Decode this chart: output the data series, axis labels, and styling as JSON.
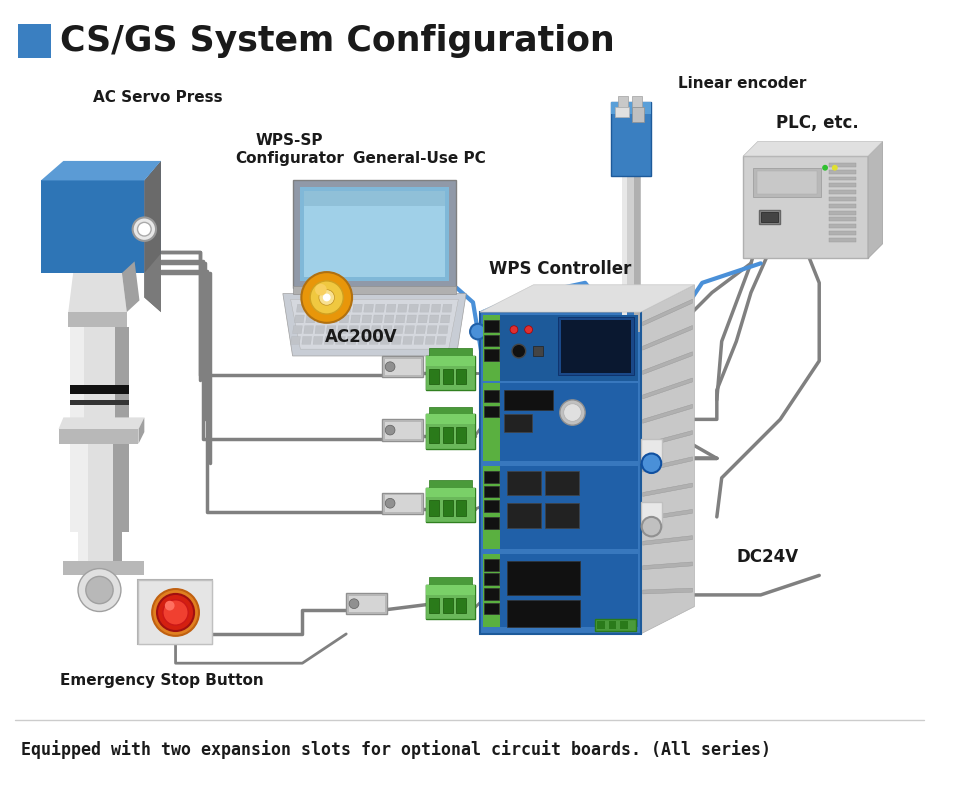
{
  "title": "CS/GS System Configuration",
  "title_color": "#1a1a1a",
  "title_blue_rect": "#3a7fc1",
  "bg_color": "#ffffff",
  "footer_text": "Equipped with two expansion slots for optional circuit boards. (All series)",
  "labels": {
    "ac_servo_press": "AC Servo Press",
    "wps_sp": "WPS-SP\nConfigurator",
    "general_pc": "General-Use PC",
    "linear_encoder": "Linear encoder",
    "plc": "PLC, etc.",
    "wps_controller": "WPS Controller",
    "ac200v": "AC200V",
    "dc24v": "DC24V",
    "emergency_stop": "Emergency Stop Button"
  },
  "colors": {
    "servo_blue_top": "#5b9bd5",
    "servo_blue_side": "#2e75b6",
    "servo_gray_body": "#d0d0d0",
    "servo_gray_dark": "#a0a0a0",
    "servo_gray_med": "#b8b8b8",
    "servo_gray_light": "#e0e0e0",
    "controller_blue": "#3878be",
    "controller_blue_dark": "#1d5a9a",
    "controller_gray": "#b0b0b0",
    "controller_gray_dark": "#909090",
    "heatsink_light": "#d0d0d0",
    "heatsink_dark": "#a0a0a0",
    "connector_green": "#4a9a3a",
    "connector_green_dark": "#2a7a1a",
    "connector_green_light": "#6ab85a",
    "wire_gray": "#808080",
    "wire_dark": "#606060",
    "wire_blue": "#4a90d8",
    "cd_orange": "#e8960a",
    "cd_gold": "#f0c840",
    "emergency_red": "#d42010",
    "emergency_orange": "#e08020",
    "plc_gray": "#c0c0c0",
    "plc_gray_dark": "#a0a0a0",
    "encoder_blue": "#3a7fc1",
    "laptop_body": "#c8cdd5",
    "laptop_screen_frame": "#9099a8",
    "laptop_screen": "#80b8d8",
    "text_dark": "#1a1a1a",
    "green_stripe": "#5ab040",
    "led_red": "#e03030",
    "led_green": "#30c030"
  }
}
